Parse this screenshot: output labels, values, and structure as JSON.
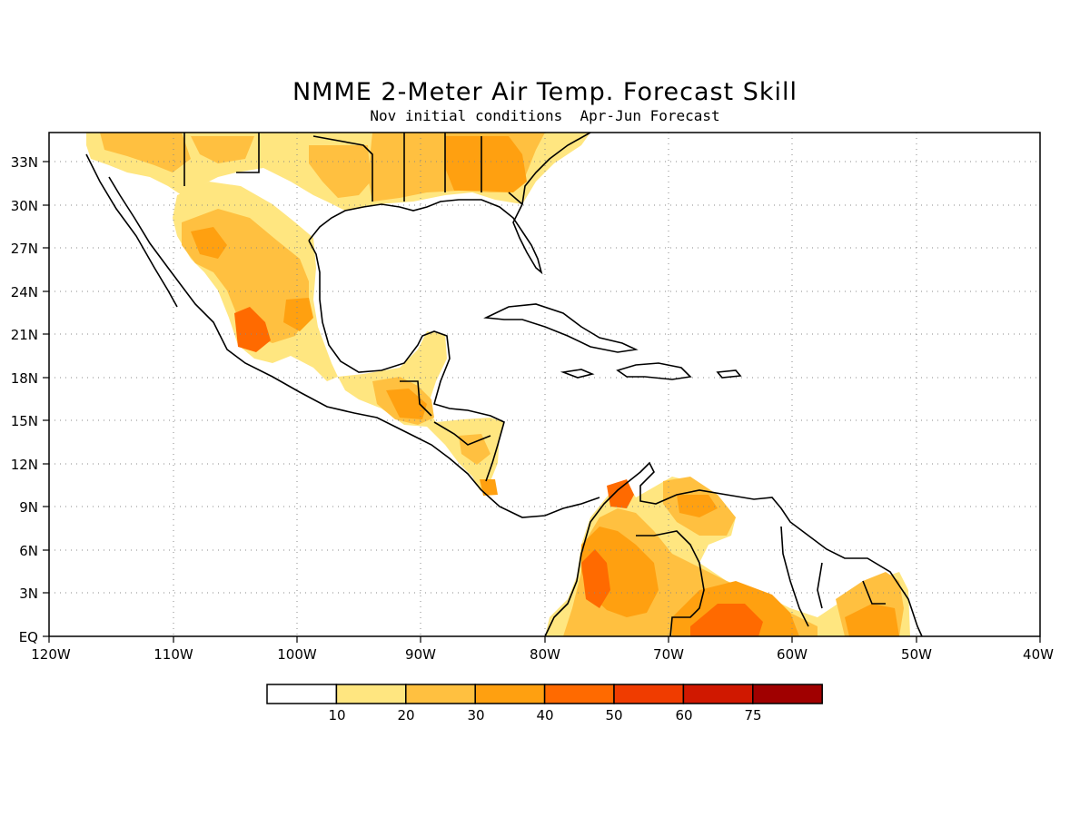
{
  "title": "NMME 2-Meter Air Temp. Forecast Skill",
  "subtitle": "Nov initial conditions  Apr-Jun Forecast",
  "map": {
    "lat_labels": [
      "33N",
      "30N",
      "27N",
      "24N",
      "21N",
      "18N",
      "15N",
      "12N",
      "9N",
      "6N",
      "3N",
      "EQ"
    ],
    "lon_labels": [
      "120W",
      "110W",
      "100W",
      "90W",
      "80W",
      "70W",
      "60W",
      "50W",
      "40W"
    ],
    "grid": true,
    "land_outline_color": "#000000"
  },
  "colorbar": {
    "colors": [
      "#ffffff",
      "#ffe680",
      "#ffc040",
      "#ffa010",
      "#ff6a00",
      "#f03c00",
      "#d01800",
      "#a00000"
    ],
    "tick_labels": [
      "10",
      "20",
      "30",
      "40",
      "50",
      "60",
      "75"
    ]
  }
}
